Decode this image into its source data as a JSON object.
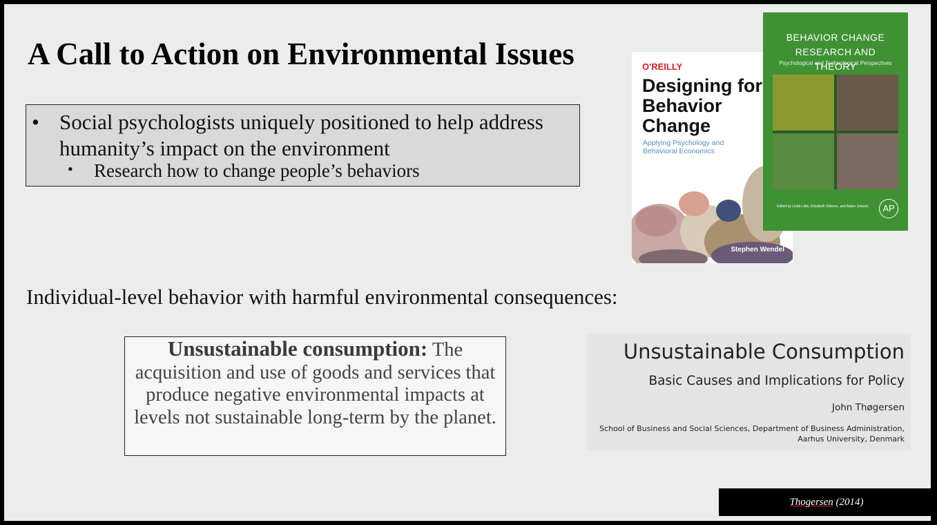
{
  "title": "A Call to Action on Environmental Issues",
  "bullets": {
    "marker": "•",
    "item1": "Social psychologists uniquely positioned to help address humanity’s impact on the environment",
    "item2": "Research how to change people’s behaviors"
  },
  "subheading": "Individual-level behavior with harmful environmental consequences:",
  "definition": {
    "term": "Unsustainable consumption:",
    "text": " The acquisition and use of goods and services that produce negative environmental impacts at levels not sustainable long-term by the planet."
  },
  "book1": {
    "publisher": "O'REILLY",
    "title": "Designing for Behavior Change",
    "subtitle": "Applying Psychology and Behavioral Economics",
    "author": "Stephen Wendel"
  },
  "book2": {
    "title": "BEHAVIOR CHANGE RESEARCH AND THEORY",
    "subtitle": "Psychological and Technological Perspectives",
    "editors": "Edited by Linda Little, Elizabeth Sillence, and Adam Joinson",
    "logo": "AP"
  },
  "paper": {
    "title": "Unsustainable Consumption",
    "subtitle": "Basic Causes and Implications for Policy",
    "author": "John Thøgersen",
    "affiliation": "School of Business and Social Sciences, Department of Business Administration, Aarhus University, Denmark"
  },
  "citation": {
    "name": "Thogersen",
    "year": " (2014)"
  },
  "colors": {
    "book2_green": "#3f9134",
    "oreilly_red": "#d3202a",
    "citation_bg": "#000000"
  }
}
